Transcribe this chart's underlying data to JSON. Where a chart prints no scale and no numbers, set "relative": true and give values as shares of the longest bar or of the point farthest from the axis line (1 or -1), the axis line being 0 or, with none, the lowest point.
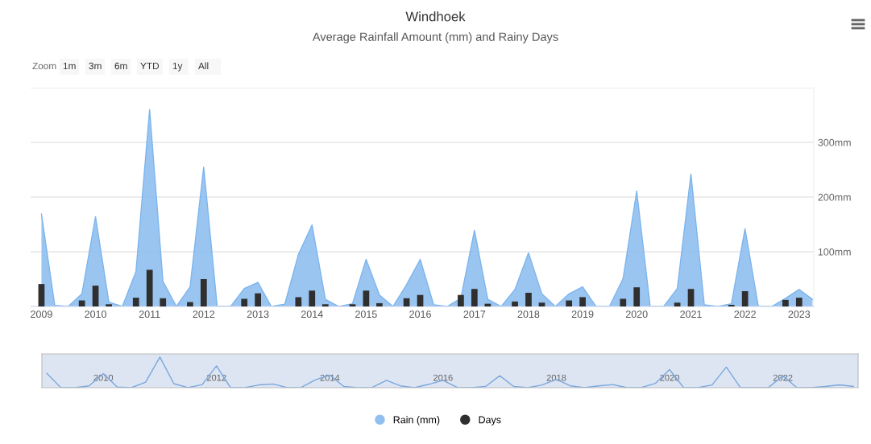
{
  "chart_data": [
    {
      "type": "area",
      "title": "Windhoek",
      "subtitle": "Average Rainfall Amount (mm) and Rainy Days",
      "annotations": [
        "Zoom",
        "1m",
        "3m",
        "6m",
        "YTD",
        "1y",
        "All"
      ],
      "x": [
        "2009-01",
        "2009-04",
        "2009-07",
        "2009-10",
        "2010-01",
        "2010-04",
        "2010-07",
        "2010-10",
        "2011-01",
        "2011-04",
        "2011-07",
        "2011-10",
        "2012-01",
        "2012-04",
        "2012-07",
        "2012-10",
        "2013-01",
        "2013-04",
        "2013-07",
        "2013-10",
        "2014-01",
        "2014-04",
        "2014-07",
        "2014-10",
        "2015-01",
        "2015-04",
        "2015-07",
        "2015-10",
        "2016-01",
        "2016-04",
        "2016-07",
        "2016-10",
        "2017-01",
        "2017-04",
        "2017-07",
        "2017-10",
        "2018-01",
        "2018-04",
        "2018-07",
        "2018-10",
        "2019-01",
        "2019-04",
        "2019-07",
        "2019-10",
        "2020-01",
        "2020-04",
        "2020-07",
        "2020-10",
        "2021-01",
        "2021-04",
        "2021-07",
        "2021-10",
        "2022-01",
        "2022-04",
        "2022-07",
        "2022-10",
        "2023-01",
        "2023-04"
      ],
      "series": [
        {
          "name": "Rain (mm)",
          "type": "area",
          "color": "#90bff0",
          "values": [
            169,
            2,
            0,
            23,
            164,
            8,
            0,
            64,
            360,
            46,
            0,
            36,
            255,
            0,
            0,
            33,
            44,
            0,
            4,
            95,
            149,
            13,
            0,
            5,
            86,
            21,
            0,
            40,
            86,
            3,
            0,
            15,
            139,
            13,
            0,
            31,
            98,
            23,
            0,
            23,
            36,
            0,
            0,
            51,
            211,
            0,
            0,
            33,
            242,
            3,
            0,
            5,
            142,
            0,
            0,
            15,
            31,
            13
          ]
        },
        {
          "name": "Days",
          "type": "bar",
          "color": "#2f2f2f",
          "values": [
            41,
            null,
            null,
            11,
            38,
            4,
            null,
            16,
            67,
            15,
            null,
            8,
            50,
            null,
            null,
            14,
            24,
            null,
            null,
            17,
            29,
            4,
            null,
            4,
            29,
            6,
            null,
            15,
            21,
            null,
            null,
            21,
            32,
            5,
            null,
            9,
            25,
            7,
            null,
            11,
            17,
            null,
            null,
            14,
            35,
            null,
            null,
            7,
            32,
            null,
            null,
            3,
            28,
            null,
            null,
            12,
            16,
            null
          ]
        }
      ],
      "xlim": [
        "2008-10-20",
        "2023-04-10"
      ],
      "xticks": [
        "2009",
        "2010",
        "2011",
        "2012",
        "2013",
        "2014",
        "2015",
        "2016",
        "2017",
        "2018",
        "2019",
        "2020",
        "2021",
        "2022",
        "2023"
      ],
      "ylim": [
        0,
        400
      ],
      "yticks": [
        {
          "value": 0,
          "label": null
        },
        {
          "value": 100,
          "label": "100mm"
        },
        {
          "value": 200,
          "label": "200mm"
        },
        {
          "value": 300,
          "label": "300mm"
        },
        {
          "value": 400,
          "label": null
        }
      ],
      "grid": "y",
      "legend": "bottom"
    },
    {
      "type": "line",
      "relative": true,
      "tick_labels": "x",
      "x": [
        "2009-01",
        "2009-04",
        "2009-07",
        "2009-10",
        "2010-01",
        "2010-04",
        "2010-07",
        "2010-10",
        "2011-01",
        "2011-04",
        "2011-07",
        "2011-10",
        "2012-01",
        "2012-04",
        "2012-07",
        "2012-10",
        "2013-01",
        "2013-04",
        "2013-07",
        "2013-10",
        "2014-01",
        "2014-04",
        "2014-07",
        "2014-10",
        "2015-01",
        "2015-04",
        "2015-07",
        "2015-10",
        "2016-01",
        "2016-04",
        "2016-07",
        "2016-10",
        "2017-01",
        "2017-04",
        "2017-07",
        "2017-10",
        "2018-01",
        "2018-04",
        "2018-07",
        "2018-10",
        "2019-01",
        "2019-04",
        "2019-07",
        "2019-10",
        "2020-01",
        "2020-04",
        "2020-07",
        "2020-10",
        "2021-01",
        "2021-04",
        "2021-07",
        "2021-10",
        "2022-01",
        "2022-04",
        "2022-07",
        "2022-10",
        "2023-01",
        "2023-04"
      ],
      "series": [
        {
          "color": "#7aa7dc",
          "values": [
            0.47,
            0.01,
            0,
            0.06,
            0.46,
            0.02,
            0,
            0.18,
            1,
            0.13,
            0,
            0.1,
            0.71,
            0,
            0,
            0.09,
            0.12,
            0,
            0.01,
            0.26,
            0.41,
            0.04,
            0,
            0.01,
            0.24,
            0.06,
            0,
            0.11,
            0.24,
            0.01,
            0,
            0.04,
            0.39,
            0.04,
            0,
            0.09,
            0.27,
            0.06,
            0,
            0.06,
            0.1,
            0,
            0,
            0.14,
            0.59,
            0,
            0,
            0.09,
            0.67,
            0.01,
            0,
            0.01,
            0.39,
            0,
            0,
            0.04,
            0.09,
            0.04
          ]
        }
      ],
      "xlim": [
        "2008-12-01",
        "2023-05-01"
      ],
      "xticks": [
        "2010",
        "2012",
        "2014",
        "2016",
        "2018",
        "2020",
        "2022"
      ]
    }
  ]
}
